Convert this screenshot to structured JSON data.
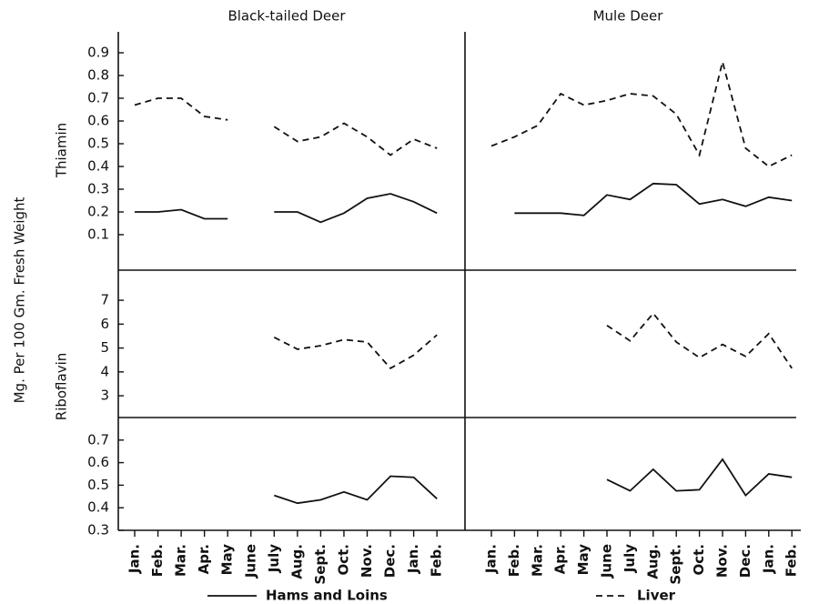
{
  "ylabel": "Mg. Per 100 Gm. Fresh Weight",
  "row_labels": [
    "Thiamin",
    "Riboflavin"
  ],
  "legend": [
    {
      "name": "Hams and Loins",
      "style": "solid"
    },
    {
      "name": "Liver",
      "style": "dashed"
    }
  ],
  "chart_data": [
    {
      "type": "line",
      "title": "Black-tailed Deer",
      "categories": [
        "Jan.",
        "Feb.",
        "Mar.",
        "Apr.",
        "May",
        "June",
        "July",
        "Aug.",
        "Sept.",
        "Oct.",
        "Nov.",
        "Dec.",
        "Jan.",
        "Feb."
      ],
      "panels": [
        {
          "ylim": [
            -0.056,
            0.992
          ],
          "yticks": [
            0.1,
            0.2,
            0.3,
            0.4,
            0.5,
            0.6,
            0.7,
            0.8,
            0.9
          ],
          "series": [
            {
              "style": "solid",
              "values": [
                0.2,
                0.2,
                0.21,
                0.17,
                0.17,
                null,
                0.2,
                0.2,
                0.155,
                0.195,
                0.26,
                0.28,
                0.245,
                0.195
              ]
            },
            {
              "style": "dashed",
              "values": [
                0.67,
                0.7,
                0.7,
                0.62,
                0.605,
                null,
                0.575,
                0.51,
                0.53,
                0.59,
                0.53,
                0.45,
                0.52,
                0.48
              ]
            }
          ]
        },
        {
          "ylim": [
            2.09,
            8.26
          ],
          "yticks": [
            3,
            4,
            5,
            6,
            7
          ],
          "series": [
            {
              "style": "dashed",
              "values": [
                null,
                null,
                null,
                null,
                null,
                null,
                5.45,
                4.95,
                5.1,
                5.35,
                5.25,
                4.15,
                4.7,
                5.55
              ]
            }
          ]
        },
        {
          "ylim": [
            0.3,
            0.8
          ],
          "yticks": [
            0.3,
            0.4,
            0.5,
            0.6,
            0.7
          ],
          "series": [
            {
              "style": "solid",
              "values": [
                null,
                null,
                null,
                null,
                null,
                null,
                0.455,
                0.42,
                0.435,
                0.47,
                0.435,
                0.54,
                0.535,
                0.44
              ]
            }
          ]
        }
      ]
    },
    {
      "type": "line",
      "title": "Mule Deer",
      "categories": [
        "Jan.",
        "Feb.",
        "Mar.",
        "Apr.",
        "May",
        "June",
        "July",
        "Aug.",
        "Sept.",
        "Oct.",
        "Nov.",
        "Dec.",
        "Jan.",
        "Feb."
      ],
      "panels": [
        {
          "ylim": [
            -0.056,
            0.992
          ],
          "series": [
            {
              "style": "solid",
              "values": [
                null,
                0.195,
                0.195,
                0.195,
                0.185,
                0.275,
                0.255,
                0.325,
                0.32,
                0.235,
                0.255,
                0.225,
                0.265,
                0.25
              ]
            },
            {
              "style": "dashed",
              "values": [
                0.49,
                0.53,
                0.58,
                0.72,
                0.67,
                0.69,
                0.72,
                0.71,
                0.63,
                0.45,
                0.86,
                0.48,
                0.4,
                0.45
              ]
            }
          ]
        },
        {
          "ylim": [
            2.09,
            8.26
          ],
          "series": [
            {
              "style": "dashed",
              "values": [
                null,
                null,
                null,
                null,
                null,
                5.95,
                5.3,
                6.45,
                5.25,
                4.6,
                5.15,
                4.65,
                5.6,
                4.15
              ]
            }
          ]
        },
        {
          "ylim": [
            0.3,
            0.8
          ],
          "series": [
            {
              "style": "solid",
              "values": [
                null,
                null,
                null,
                null,
                null,
                0.525,
                0.475,
                0.57,
                0.475,
                0.48,
                0.615,
                0.455,
                0.55,
                0.535
              ]
            }
          ]
        }
      ]
    }
  ]
}
